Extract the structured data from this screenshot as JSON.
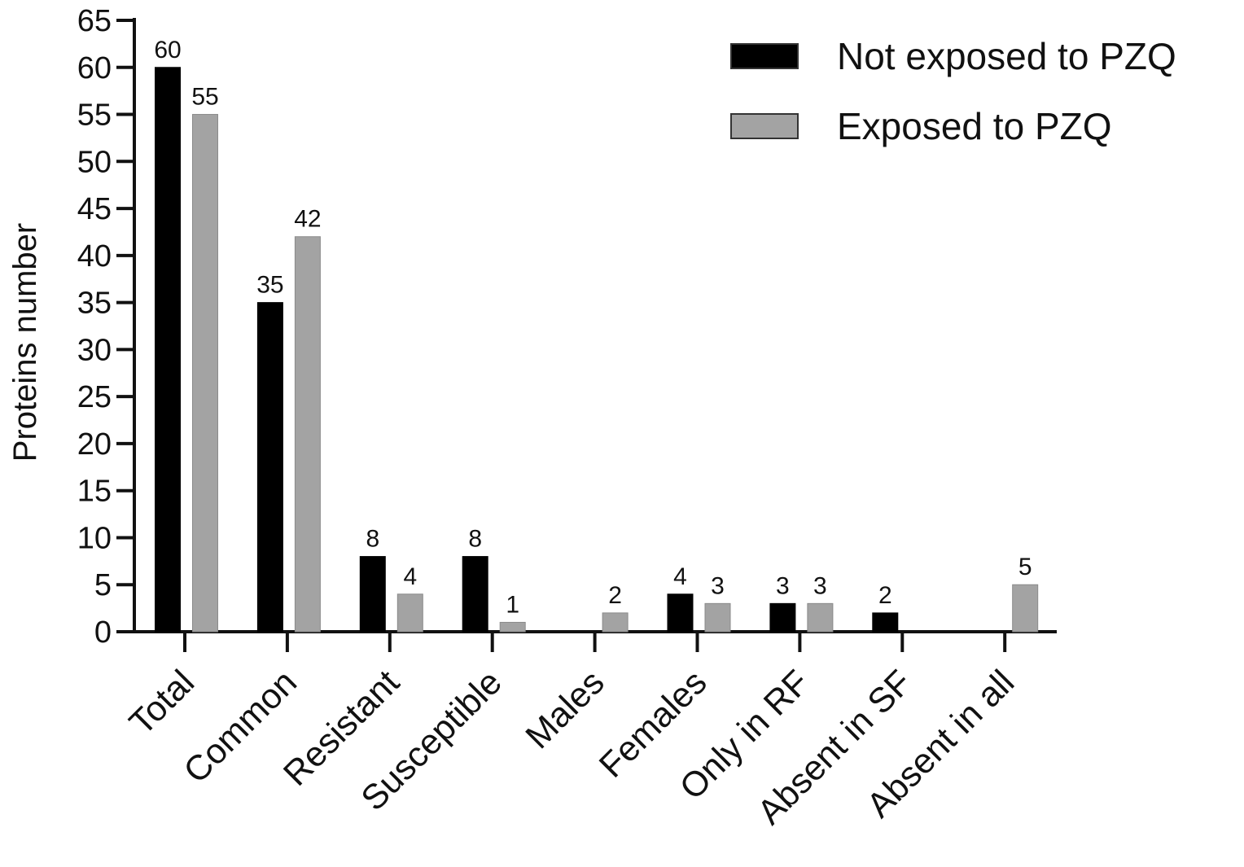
{
  "chart_data": {
    "type": "bar",
    "title": "",
    "xlabel": "",
    "ylabel": "Proteins number",
    "ylim": [
      0,
      65
    ],
    "yticks": [
      0,
      5,
      10,
      15,
      20,
      25,
      30,
      35,
      40,
      45,
      50,
      55,
      60,
      65
    ],
    "grid": false,
    "legend_position": "top-right",
    "categories": [
      "Total",
      "Common",
      "Resistant",
      "Susceptible",
      "Males",
      "Females",
      "Only in RF",
      "Absent in SF",
      "Absent in all"
    ],
    "series": [
      {
        "name": "Not exposed to PZQ",
        "color": "#000000",
        "values": [
          60,
          35,
          8,
          8,
          null,
          4,
          3,
          2,
          null
        ],
        "labels": [
          "60",
          "35",
          "8",
          "8",
          "",
          "4",
          "3",
          "2",
          ""
        ]
      },
      {
        "name": "Exposed to PZQ",
        "color": "#a3a3a3",
        "values": [
          55,
          42,
          4,
          1,
          2,
          3,
          3,
          null,
          5
        ],
        "labels": [
          "55",
          "42",
          "4",
          "1",
          "2",
          "3",
          "3",
          "",
          "5"
        ]
      }
    ]
  }
}
